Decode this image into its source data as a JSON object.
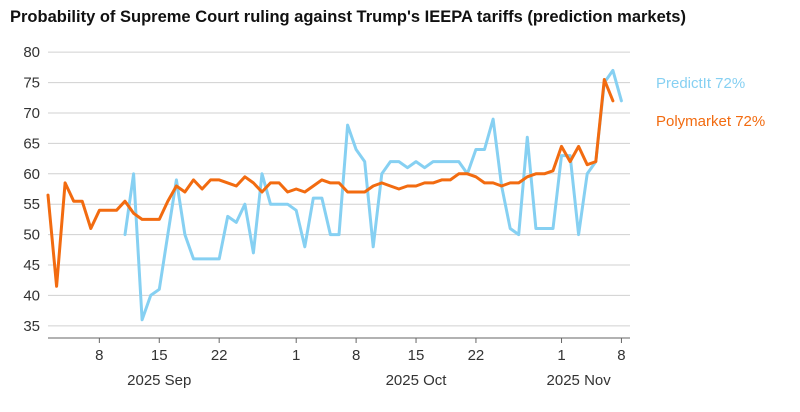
{
  "title": "Probability of Supreme Court ruling against Trump's IEEPA tariffs (prediction markets)",
  "chart_data": {
    "type": "line",
    "title": "Probability of Supreme Court ruling against Trump's IEEPA tariffs (prediction markets)",
    "xlabel": "",
    "ylabel": "",
    "ylim": [
      33,
      82
    ],
    "yticks": [
      35,
      40,
      45,
      50,
      55,
      60,
      65,
      70,
      75,
      80
    ],
    "xlim": [
      "2025-09-02",
      "2025-11-09"
    ],
    "xticks": [
      {
        "date": "2025-09-08",
        "label": "8"
      },
      {
        "date": "2025-09-15",
        "label": "15"
      },
      {
        "date": "2025-09-22",
        "label": "22"
      },
      {
        "date": "2025-10-01",
        "label": "1"
      },
      {
        "date": "2025-10-08",
        "label": "8"
      },
      {
        "date": "2025-10-15",
        "label": "15"
      },
      {
        "date": "2025-10-22",
        "label": "22"
      },
      {
        "date": "2025-11-01",
        "label": "1"
      },
      {
        "date": "2025-11-08",
        "label": "8"
      }
    ],
    "month_labels": [
      {
        "date": "2025-09-15",
        "label": "2025 Sep"
      },
      {
        "date": "2025-10-15",
        "label": "2025 Oct"
      },
      {
        "date": "2025-11-03",
        "label": "2025 Nov"
      }
    ],
    "grid": "horizontal",
    "legend_placement": "right",
    "series": [
      {
        "name": "PredictIt",
        "legend_label": "PredictIt 72%",
        "color": "#86d0f2",
        "points": [
          [
            "2025-09-11",
            50
          ],
          [
            "2025-09-12",
            60
          ],
          [
            "2025-09-13",
            36
          ],
          [
            "2025-09-14",
            40
          ],
          [
            "2025-09-15",
            41
          ],
          [
            "2025-09-16",
            50
          ],
          [
            "2025-09-17",
            59
          ],
          [
            "2025-09-18",
            50
          ],
          [
            "2025-09-19",
            46
          ],
          [
            "2025-09-20",
            46
          ],
          [
            "2025-09-21",
            46
          ],
          [
            "2025-09-22",
            46
          ],
          [
            "2025-09-23",
            53
          ],
          [
            "2025-09-24",
            52
          ],
          [
            "2025-09-25",
            55
          ],
          [
            "2025-09-26",
            47
          ],
          [
            "2025-09-27",
            60
          ],
          [
            "2025-09-28",
            55
          ],
          [
            "2025-09-29",
            55
          ],
          [
            "2025-09-30",
            55
          ],
          [
            "2025-10-01",
            54
          ],
          [
            "2025-10-02",
            48
          ],
          [
            "2025-10-03",
            56
          ],
          [
            "2025-10-04",
            56
          ],
          [
            "2025-10-05",
            50
          ],
          [
            "2025-10-06",
            50
          ],
          [
            "2025-10-07",
            68
          ],
          [
            "2025-10-08",
            64
          ],
          [
            "2025-10-09",
            62
          ],
          [
            "2025-10-10",
            48
          ],
          [
            "2025-10-11",
            60
          ],
          [
            "2025-10-12",
            62
          ],
          [
            "2025-10-13",
            62
          ],
          [
            "2025-10-14",
            61
          ],
          [
            "2025-10-15",
            62
          ],
          [
            "2025-10-16",
            61
          ],
          [
            "2025-10-17",
            62
          ],
          [
            "2025-10-18",
            62
          ],
          [
            "2025-10-19",
            62
          ],
          [
            "2025-10-20",
            62
          ],
          [
            "2025-10-21",
            60
          ],
          [
            "2025-10-22",
            64
          ],
          [
            "2025-10-23",
            64
          ],
          [
            "2025-10-24",
            69
          ],
          [
            "2025-10-25",
            58
          ],
          [
            "2025-10-26",
            51
          ],
          [
            "2025-10-27",
            50
          ],
          [
            "2025-10-28",
            66
          ],
          [
            "2025-10-29",
            51
          ],
          [
            "2025-10-30",
            51
          ],
          [
            "2025-10-31",
            51
          ],
          [
            "2025-11-01",
            63
          ],
          [
            "2025-11-02",
            63
          ],
          [
            "2025-11-03",
            50
          ],
          [
            "2025-11-04",
            60
          ],
          [
            "2025-11-05",
            62
          ],
          [
            "2025-11-06",
            75
          ],
          [
            "2025-11-07",
            77
          ],
          [
            "2025-11-08",
            72
          ]
        ]
      },
      {
        "name": "Polymarket",
        "legend_label": "Polymarket 72%",
        "color": "#f26b10",
        "points": [
          [
            "2025-09-02",
            56.5
          ],
          [
            "2025-09-03",
            41.5
          ],
          [
            "2025-09-04",
            58.5
          ],
          [
            "2025-09-05",
            55.5
          ],
          [
            "2025-09-06",
            55.5
          ],
          [
            "2025-09-07",
            51
          ],
          [
            "2025-09-08",
            54
          ],
          [
            "2025-09-09",
            54
          ],
          [
            "2025-09-10",
            54
          ],
          [
            "2025-09-11",
            55.5
          ],
          [
            "2025-09-12",
            53.5
          ],
          [
            "2025-09-13",
            52.5
          ],
          [
            "2025-09-14",
            52.5
          ],
          [
            "2025-09-15",
            52.5
          ],
          [
            "2025-09-16",
            55.5
          ],
          [
            "2025-09-17",
            58
          ],
          [
            "2025-09-18",
            57
          ],
          [
            "2025-09-19",
            59
          ],
          [
            "2025-09-20",
            57.5
          ],
          [
            "2025-09-21",
            59
          ],
          [
            "2025-09-22",
            59
          ],
          [
            "2025-09-23",
            58.5
          ],
          [
            "2025-09-24",
            58
          ],
          [
            "2025-09-25",
            59.5
          ],
          [
            "2025-09-26",
            58.5
          ],
          [
            "2025-09-27",
            57
          ],
          [
            "2025-09-28",
            58.5
          ],
          [
            "2025-09-29",
            58.5
          ],
          [
            "2025-09-30",
            57
          ],
          [
            "2025-10-01",
            57.5
          ],
          [
            "2025-10-02",
            57
          ],
          [
            "2025-10-03",
            58
          ],
          [
            "2025-10-04",
            59
          ],
          [
            "2025-10-05",
            58.5
          ],
          [
            "2025-10-06",
            58.5
          ],
          [
            "2025-10-07",
            57
          ],
          [
            "2025-10-08",
            57
          ],
          [
            "2025-10-09",
            57
          ],
          [
            "2025-10-10",
            58
          ],
          [
            "2025-10-11",
            58.5
          ],
          [
            "2025-10-12",
            58
          ],
          [
            "2025-10-13",
            57.5
          ],
          [
            "2025-10-14",
            58
          ],
          [
            "2025-10-15",
            58
          ],
          [
            "2025-10-16",
            58.5
          ],
          [
            "2025-10-17",
            58.5
          ],
          [
            "2025-10-18",
            59
          ],
          [
            "2025-10-19",
            59
          ],
          [
            "2025-10-20",
            60
          ],
          [
            "2025-10-21",
            60
          ],
          [
            "2025-10-22",
            59.5
          ],
          [
            "2025-10-23",
            58.5
          ],
          [
            "2025-10-24",
            58.5
          ],
          [
            "2025-10-25",
            58
          ],
          [
            "2025-10-26",
            58.5
          ],
          [
            "2025-10-27",
            58.5
          ],
          [
            "2025-10-28",
            59.5
          ],
          [
            "2025-10-29",
            60
          ],
          [
            "2025-10-30",
            60
          ],
          [
            "2025-10-31",
            60.5
          ],
          [
            "2025-11-01",
            64.5
          ],
          [
            "2025-11-02",
            62
          ],
          [
            "2025-11-03",
            64.5
          ],
          [
            "2025-11-04",
            61.5
          ],
          [
            "2025-11-05",
            62
          ],
          [
            "2025-11-06",
            75.5
          ],
          [
            "2025-11-07",
            72
          ]
        ]
      }
    ]
  }
}
